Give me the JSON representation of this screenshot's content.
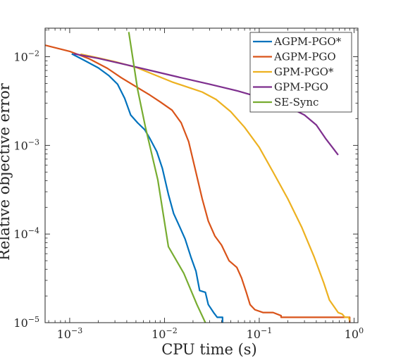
{
  "chart_data": {
    "type": "line",
    "title": "",
    "xlabel": "CPU time (s)",
    "ylabel": "Relative objective error",
    "xscale": "log",
    "yscale": "log",
    "xlim": [
      0.00055,
      1.1
    ],
    "ylim": [
      1e-05,
      0.021
    ],
    "grid": false,
    "legend_position": "top-right",
    "x_ticks": [
      {
        "value": 0.001,
        "base": "10",
        "exp": "−3"
      },
      {
        "value": 0.01,
        "base": "10",
        "exp": "−2"
      },
      {
        "value": 0.1,
        "base": "10",
        "exp": "−1"
      },
      {
        "value": 1,
        "base": "10",
        "exp": "0"
      }
    ],
    "y_ticks": [
      {
        "value": 1e-05,
        "base": "10",
        "exp": "−5"
      },
      {
        "value": 0.0001,
        "base": "10",
        "exp": "−4"
      },
      {
        "value": 0.001,
        "base": "10",
        "exp": "−3"
      },
      {
        "value": 0.01,
        "base": "10",
        "exp": "−2"
      }
    ],
    "series": [
      {
        "name": "AGPM-PGO*",
        "color": "#0072BD",
        "points": [
          [
            0.00105,
            0.0108
          ],
          [
            0.0014,
            0.0092
          ],
          [
            0.002,
            0.0075
          ],
          [
            0.0026,
            0.0061
          ],
          [
            0.0032,
            0.0049
          ],
          [
            0.0038,
            0.0034
          ],
          [
            0.0044,
            0.0022
          ],
          [
            0.0052,
            0.0018
          ],
          [
            0.0062,
            0.0015
          ],
          [
            0.007,
            0.0012
          ],
          [
            0.0083,
            0.00085
          ],
          [
            0.0095,
            0.00055
          ],
          [
            0.011,
            0.00028
          ],
          [
            0.0125,
            0.00017
          ],
          [
            0.0145,
            0.00012
          ],
          [
            0.0165,
            8.8e-05
          ],
          [
            0.019,
            5.5e-05
          ],
          [
            0.0215,
            3.8e-05
          ],
          [
            0.0235,
            2.3e-05
          ],
          [
            0.027,
            2.2e-05
          ],
          [
            0.029,
            1.6e-05
          ],
          [
            0.033,
            1.3e-05
          ],
          [
            0.036,
            1.15e-05
          ],
          [
            0.041,
            1.15e-05
          ],
          [
            0.041,
            1e-05
          ]
        ]
      },
      {
        "name": "AGPM-PGO",
        "color": "#D95319",
        "points": [
          [
            0.00055,
            0.0135
          ],
          [
            0.001,
            0.0115
          ],
          [
            0.0016,
            0.0095
          ],
          [
            0.0025,
            0.0074
          ],
          [
            0.0035,
            0.0058
          ],
          [
            0.005,
            0.0046
          ],
          [
            0.007,
            0.0037
          ],
          [
            0.009,
            0.0031
          ],
          [
            0.012,
            0.0025
          ],
          [
            0.015,
            0.0018
          ],
          [
            0.018,
            0.0011
          ],
          [
            0.021,
            0.00055
          ],
          [
            0.025,
            0.00025
          ],
          [
            0.029,
            0.00014
          ],
          [
            0.034,
            9.5e-05
          ],
          [
            0.04,
            7.5e-05
          ],
          [
            0.048,
            5e-05
          ],
          [
            0.058,
            4.2e-05
          ],
          [
            0.065,
            3.2e-05
          ],
          [
            0.073,
            2.2e-05
          ],
          [
            0.08,
            1.6e-05
          ],
          [
            0.09,
            1.4e-05
          ],
          [
            0.11,
            1.3e-05
          ],
          [
            0.14,
            1.3e-05
          ],
          [
            0.17,
            1.2e-05
          ],
          [
            0.17,
            1.15e-05
          ],
          [
            0.5,
            1.15e-05
          ],
          [
            0.9,
            1.15e-05
          ],
          [
            0.9,
            1e-05
          ]
        ]
      },
      {
        "name": "GPM-PGO*",
        "color": "#EDB120",
        "points": [
          [
            0.0013,
            0.0107
          ],
          [
            0.002,
            0.0097
          ],
          [
            0.003,
            0.0088
          ],
          [
            0.005,
            0.0076
          ],
          [
            0.008,
            0.0062
          ],
          [
            0.012,
            0.0052
          ],
          [
            0.018,
            0.0045
          ],
          [
            0.025,
            0.004
          ],
          [
            0.035,
            0.0033
          ],
          [
            0.05,
            0.0024
          ],
          [
            0.07,
            0.0016
          ],
          [
            0.1,
            0.00095
          ],
          [
            0.14,
            0.0005
          ],
          [
            0.2,
            0.00025
          ],
          [
            0.28,
            0.00012
          ],
          [
            0.38,
            5.5e-05
          ],
          [
            0.48,
            2.8e-05
          ],
          [
            0.55,
            1.8e-05
          ],
          [
            0.62,
            1.5e-05
          ],
          [
            0.68,
            1.3e-05
          ],
          [
            0.75,
            1.25e-05
          ],
          [
            0.8,
            1.15e-05
          ],
          [
            0.88,
            1.15e-05
          ],
          [
            0.9,
            1.05e-05
          ]
        ]
      },
      {
        "name": "GPM-PGO",
        "color": "#7E2F8E",
        "points": [
          [
            0.0011,
            0.0108
          ],
          [
            0.002,
            0.0096
          ],
          [
            0.004,
            0.0081
          ],
          [
            0.008,
            0.0068
          ],
          [
            0.015,
            0.0058
          ],
          [
            0.03,
            0.0049
          ],
          [
            0.06,
            0.0041
          ],
          [
            0.1,
            0.0035
          ],
          [
            0.15,
            0.003
          ],
          [
            0.22,
            0.0026
          ],
          [
            0.3,
            0.0022
          ],
          [
            0.4,
            0.0017
          ],
          [
            0.5,
            0.0012
          ],
          [
            0.6,
            0.00093
          ],
          [
            0.68,
            0.00078
          ]
        ]
      },
      {
        "name": "SE-Sync",
        "color": "#77AC30",
        "points": [
          [
            0.0042,
            0.019
          ],
          [
            0.0052,
            0.0043
          ],
          [
            0.0063,
            0.0016
          ],
          [
            0.0085,
            0.00041
          ],
          [
            0.011,
            7.2e-05
          ],
          [
            0.016,
            3.6e-05
          ],
          [
            0.022,
            1.6e-05
          ],
          [
            0.027,
            1e-05
          ]
        ]
      }
    ]
  }
}
